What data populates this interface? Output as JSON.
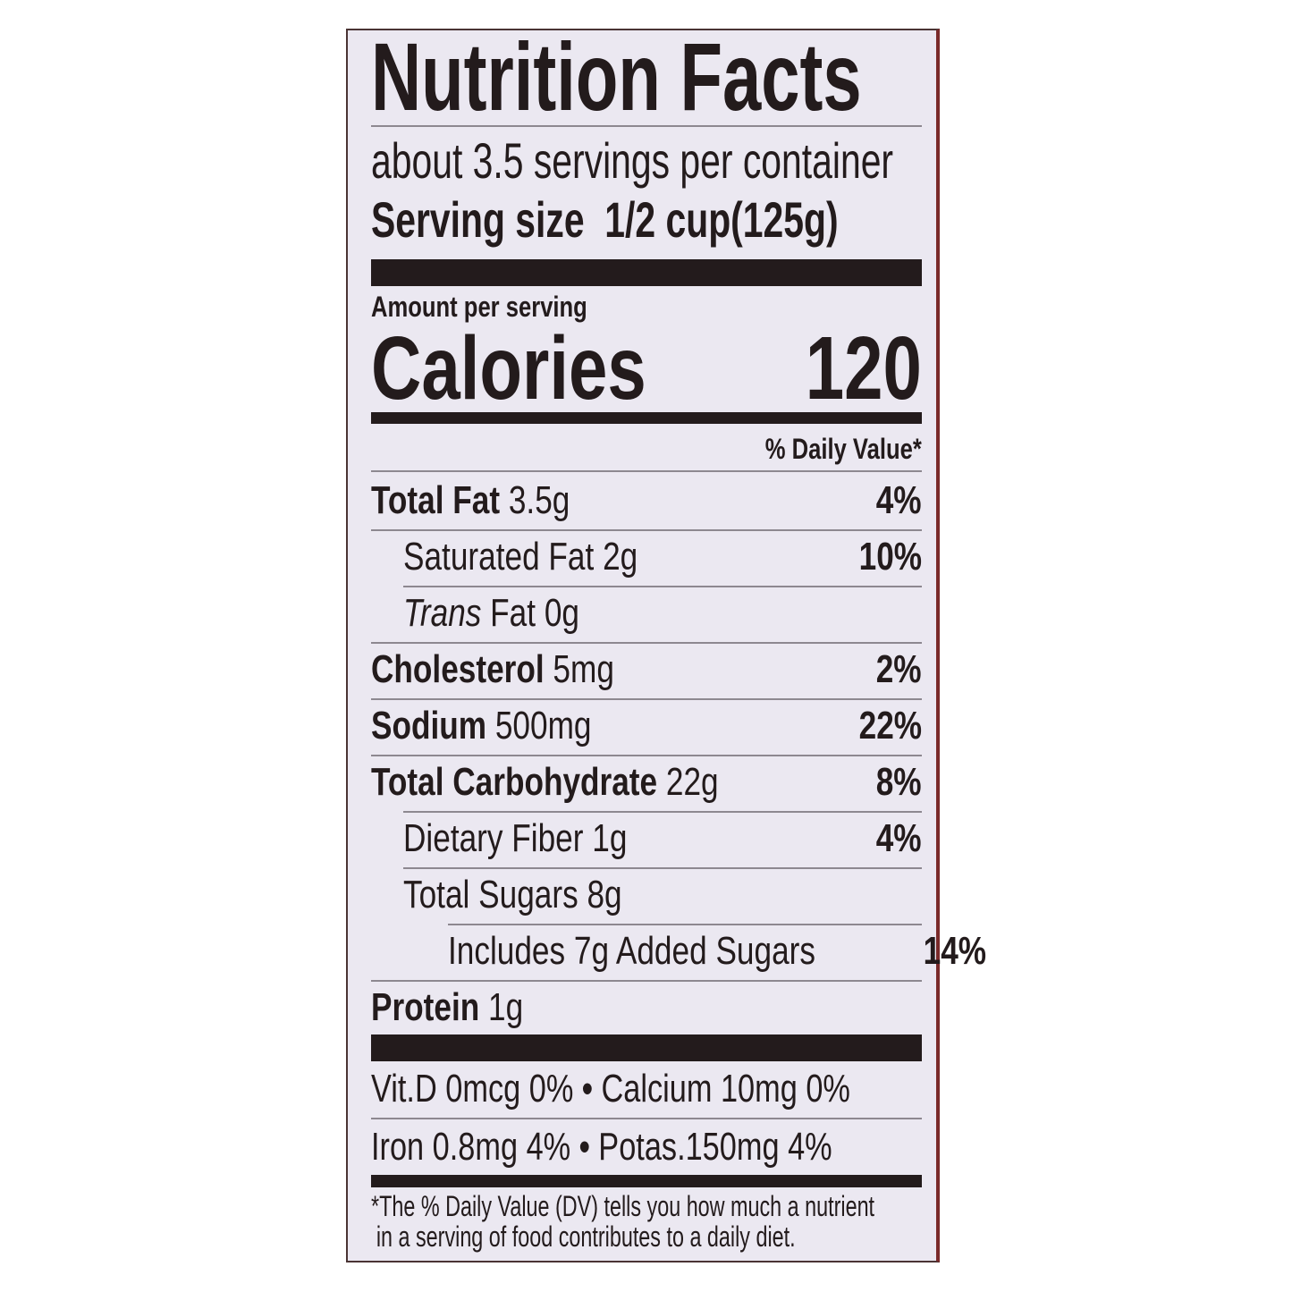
{
  "label": {
    "title": "Nutrition Facts",
    "servings_per_container": "about 3.5 servings per container",
    "serving_size_label": "Serving size",
    "serving_size_value": "1/2 cup(125g)",
    "amount_per_serving": "Amount per serving",
    "calories_label": "Calories",
    "calories_value": "120",
    "daily_value_header": "% Daily Value*",
    "nutrients": [
      {
        "name": "Total Fat",
        "amount": "3.5g",
        "dv": "4%"
      },
      {
        "name": "Saturated Fat",
        "amount": "2g",
        "dv": "10%"
      },
      {
        "name": "Trans",
        "name_rest": "Fat",
        "amount": "0g",
        "dv": ""
      },
      {
        "name": "Cholesterol",
        "amount": "5mg",
        "dv": "2%"
      },
      {
        "name": "Sodium",
        "amount": "500mg",
        "dv": "22%"
      },
      {
        "name": "Total Carbohydrate",
        "amount": "22g",
        "dv": "8%"
      },
      {
        "name": "Dietary Fiber",
        "amount": "1g",
        "dv": "4%"
      },
      {
        "name": "Total Sugars",
        "amount": "8g",
        "dv": ""
      },
      {
        "name": "Includes 7g Added Sugars",
        "amount": "",
        "dv": "14%"
      },
      {
        "name": "Protein",
        "amount": "1g",
        "dv": ""
      }
    ],
    "vitamins_row1": [
      "Vit.D 0mcg 0%",
      "•",
      "Calcium 10mg 0%"
    ],
    "vitamins_row2": [
      "Iron 0.8mg 4%",
      "•",
      "Potas.150mg 4%"
    ],
    "footnote_line1": "*The % Daily Value (DV) tells you how much a nutrient",
    "footnote_line2": "in a serving of food contributes to a daily diet."
  }
}
